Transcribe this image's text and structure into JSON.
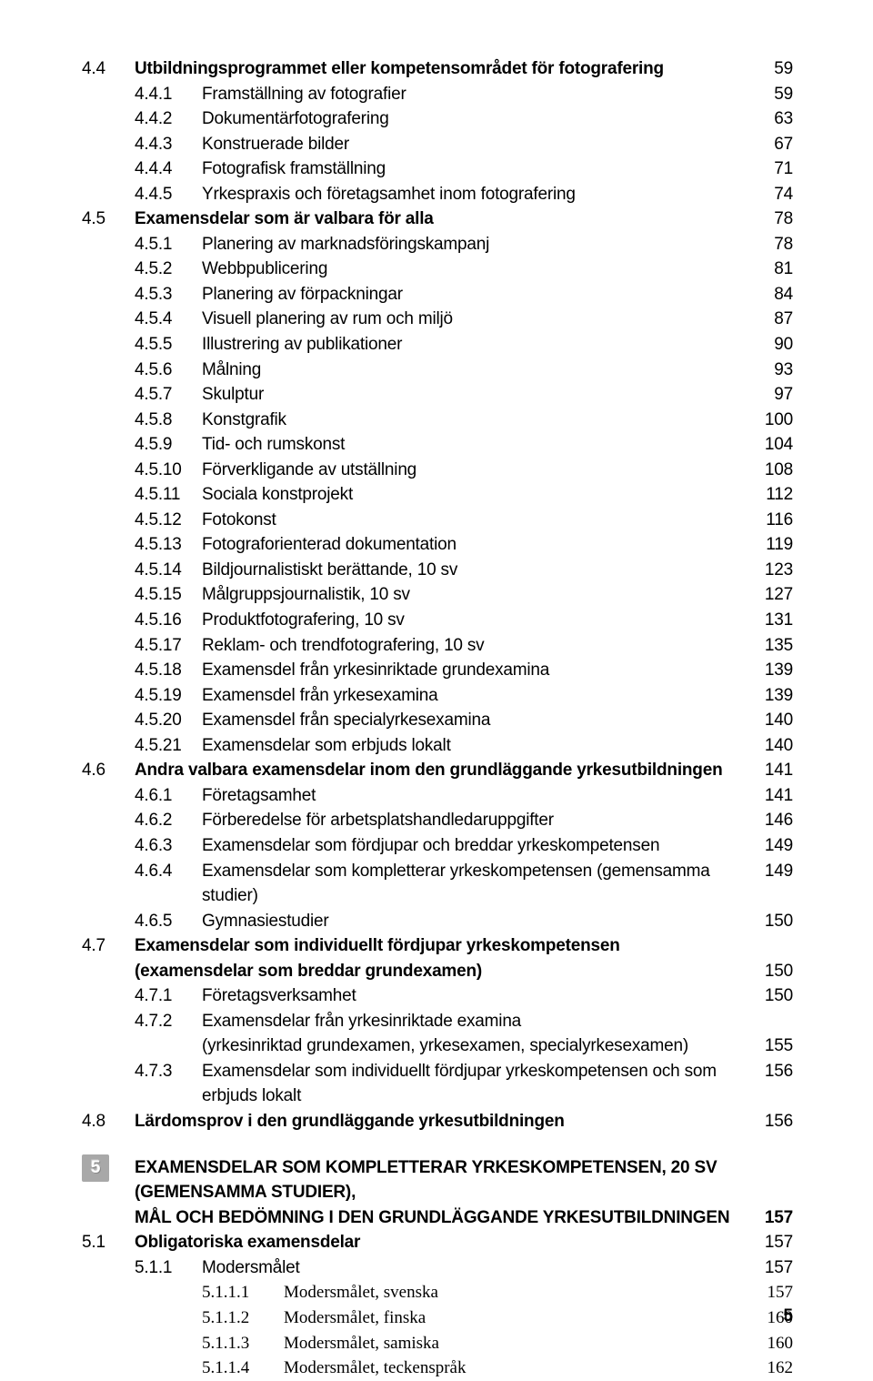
{
  "colors": {
    "bg": "#ffffff",
    "text": "#000000",
    "chapter_badge_bg": "#a8a8a8",
    "chapter_badge_fg": "#ffffff"
  },
  "typography": {
    "body_family": "Helvetica Neue, Arial, sans-serif",
    "body_size_pt": 14,
    "serif_family": "Georgia, Times New Roman, serif"
  },
  "toc": {
    "s44": {
      "num": "4.4",
      "label": "Utbildningsprogrammet eller kompetensområdet för fotografering",
      "pg": "59"
    },
    "s441": {
      "num": "4.4.1",
      "label": "Framställning av fotografier",
      "pg": "59"
    },
    "s442": {
      "num": "4.4.2",
      "label": "Dokumentärfotografering",
      "pg": "63"
    },
    "s443": {
      "num": "4.4.3",
      "label": "Konstruerade bilder",
      "pg": "67"
    },
    "s444": {
      "num": "4.4.4",
      "label": "Fotografisk framställning",
      "pg": "71"
    },
    "s445": {
      "num": "4.4.5",
      "label": "Yrkespraxis och företagsamhet inom fotografering",
      "pg": "74"
    },
    "s45": {
      "num": "4.5",
      "label": "Examensdelar som är valbara för alla",
      "pg": "78"
    },
    "s451": {
      "num": "4.5.1",
      "label": "Planering av marknadsföringskampanj",
      "pg": "78"
    },
    "s452": {
      "num": "4.5.2",
      "label": "Webbpublicering",
      "pg": "81"
    },
    "s453": {
      "num": "4.5.3",
      "label": "Planering av förpackningar",
      "pg": "84"
    },
    "s454": {
      "num": "4.5.4",
      "label": "Visuell planering av rum och miljö",
      "pg": "87"
    },
    "s455": {
      "num": "4.5.5",
      "label": "Illustrering av publikationer",
      "pg": "90"
    },
    "s456": {
      "num": "4.5.6",
      "label": "Målning",
      "pg": "93"
    },
    "s457": {
      "num": "4.5.7",
      "label": "Skulptur",
      "pg": "97"
    },
    "s458": {
      "num": "4.5.8",
      "label": "Konstgrafik",
      "pg": "100"
    },
    "s459": {
      "num": "4.5.9",
      "label": "Tid- och rumskonst",
      "pg": "104"
    },
    "s4510": {
      "num": "4.5.10",
      "label": "Förverkligande av utställning",
      "pg": "108"
    },
    "s4511": {
      "num": "4.5.11",
      "label": "Sociala konstprojekt",
      "pg": "112"
    },
    "s4512": {
      "num": "4.5.12",
      "label": "Fotokonst",
      "pg": "116"
    },
    "s4513": {
      "num": "4.5.13",
      "label": "Fotograforienterad dokumentation",
      "pg": "119"
    },
    "s4514": {
      "num": "4.5.14",
      "label": "Bildjournalistiskt berättande, 10 sv",
      "pg": "123"
    },
    "s4515": {
      "num": "4.5.15",
      "label": "Målgruppsjournalistik, 10 sv",
      "pg": "127"
    },
    "s4516": {
      "num": "4.5.16",
      "label": "Produktfotografering, 10 sv",
      "pg": "131"
    },
    "s4517": {
      "num": "4.5.17",
      "label": "Reklam- och trendfotografering, 10 sv",
      "pg": "135"
    },
    "s4518": {
      "num": "4.5.18",
      "label": "Examensdel från yrkesinriktade grundexamina",
      "pg": "139"
    },
    "s4519": {
      "num": "4.5.19",
      "label": "Examensdel från yrkesexamina",
      "pg": "139"
    },
    "s4520": {
      "num": "4.5.20",
      "label": "Examensdel från specialyrkesexamina",
      "pg": "140"
    },
    "s4521": {
      "num": "4.5.21",
      "label": "Examensdelar som erbjuds lokalt",
      "pg": "140"
    },
    "s46": {
      "num": "4.6",
      "label": "Andra valbara examensdelar inom den grundläggande yrkesutbildningen",
      "pg": "141"
    },
    "s461": {
      "num": "4.6.1",
      "label": "Företagsamhet",
      "pg": "141"
    },
    "s462": {
      "num": "4.6.2",
      "label": "Förberedelse för arbetsplatshandledaruppgifter",
      "pg": "146"
    },
    "s463": {
      "num": "4.6.3",
      "label": "Examensdelar som fördjupar och breddar yrkeskompetensen",
      "pg": "149"
    },
    "s464": {
      "num": "4.6.4",
      "label": "Examensdelar som kompletterar yrkeskompetensen (gemensamma studier)",
      "pg": "149"
    },
    "s465": {
      "num": "4.6.5",
      "label": "Gymnasiestudier",
      "pg": "150"
    },
    "s47": {
      "num": "4.7",
      "label": "Examensdelar som individuellt fördjupar yrkeskompetensen",
      "pg": ""
    },
    "s47b": {
      "label": "(examensdelar som breddar grundexamen)",
      "pg": "150"
    },
    "s471": {
      "num": "4.7.1",
      "label": "Företagsverksamhet",
      "pg": "150"
    },
    "s472": {
      "num": "4.7.2",
      "label": "Examensdelar från yrkesinriktade examina",
      "pg": ""
    },
    "s472b": {
      "label": "(yrkesinriktad grundexamen, yrkesexamen, specialyrkesexamen)",
      "pg": "155"
    },
    "s473": {
      "num": "4.7.3",
      "label": "Examensdelar som individuellt fördjupar yrkeskompetensen och som erbjuds lokalt",
      "pg": "156"
    },
    "s48": {
      "num": "4.8",
      "label": "Lärdomsprov i den grundläggande yrkesutbildningen",
      "pg": "156"
    }
  },
  "chapter5": {
    "num": "5",
    "title_line1": "EXAMENSDELAR SOM KOMPLETTERAR YRKESKOMPETENSEN, 20 SV (GEMENSAMMA STUDIER),",
    "title_line2": "MÅL OCH BEDÖMNING I DEN GRUNDLÄGGANDE YRKESUTBILDNINGEN",
    "pg": "157",
    "s51": {
      "num": "5.1",
      "label": "Obligatoriska examensdelar",
      "pg": "157"
    },
    "s511": {
      "num": "5.1.1",
      "label": "Modersmålet",
      "pg": "157"
    },
    "s5111": {
      "num": "5.1.1.1",
      "label": "Modersmålet, svenska",
      "pg": "157"
    },
    "s5112": {
      "num": "5.1.1.2",
      "label": "Modersmålet, finska",
      "pg": "160"
    },
    "s5113": {
      "num": "5.1.1.3",
      "label": "Modersmålet, samiska",
      "pg": "160"
    },
    "s5114": {
      "num": "5.1.1.4",
      "label": "Modersmålet, teckenspråk",
      "pg": "162"
    }
  },
  "footer_page": "5"
}
